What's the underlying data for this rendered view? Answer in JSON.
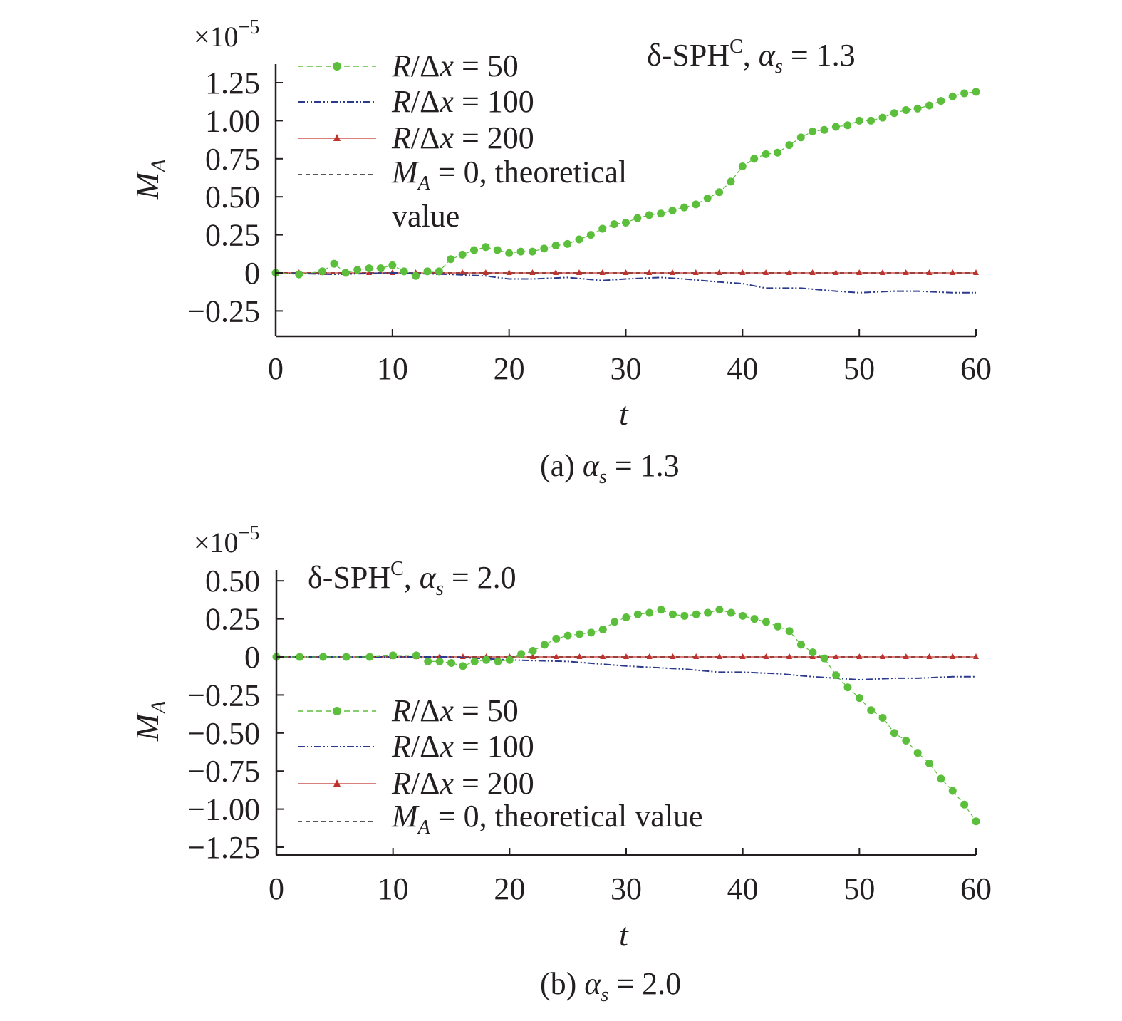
{
  "chart_data": [
    {
      "type": "line",
      "caption": {
        "prefix": "(a) ",
        "symbol": "α",
        "sub": "s",
        "suffix": " = 1.3"
      },
      "annotation": {
        "delta": "δ-SPH",
        "sup": "C",
        "comma": ", ",
        "symbol": "α",
        "sub": "s",
        "suffix": " = 1.3"
      },
      "multiplier": {
        "base": "×10",
        "exp": "−5"
      },
      "xlabel": "t",
      "ylabel": {
        "main": "M",
        "sub": "A"
      },
      "xlim": [
        0,
        60
      ],
      "ylim": [
        -0.4,
        1.35
      ],
      "xticks": [
        0,
        10,
        20,
        30,
        40,
        50,
        60
      ],
      "xtick_labels": [
        "0",
        "10",
        "20",
        "30",
        "40",
        "50",
        "60"
      ],
      "yticks": [
        -0.25,
        0,
        0.25,
        0.5,
        0.75,
        1.0,
        1.25
      ],
      "ytick_labels": [
        "−0.25",
        "0",
        "0.25",
        "0.50",
        "0.75",
        "1.00",
        "1.25"
      ],
      "legend_position": "top-left",
      "series": [
        {
          "name": "R/Δx = 50",
          "label": {
            "R": "R",
            "slash": "/Δ",
            "x": "x",
            "rest": " = 50"
          },
          "color": "#5bbf3c",
          "style": "dots",
          "x": [
            0,
            2,
            4,
            5,
            6,
            7,
            8,
            9,
            10,
            11,
            12,
            13,
            14,
            15,
            16,
            17,
            18,
            19,
            20,
            21,
            22,
            23,
            24,
            25,
            26,
            27,
            28,
            29,
            30,
            31,
            32,
            33,
            34,
            35,
            36,
            37,
            38,
            39,
            40,
            41,
            42,
            43,
            44,
            45,
            46,
            47,
            48,
            49,
            50,
            51,
            52,
            53,
            54,
            55,
            56,
            57,
            58,
            59,
            60
          ],
          "y": [
            0,
            -0.01,
            0.01,
            0.06,
            0.0,
            0.02,
            0.03,
            0.03,
            0.05,
            0.01,
            -0.02,
            0.01,
            0.01,
            0.09,
            0.12,
            0.15,
            0.17,
            0.15,
            0.13,
            0.14,
            0.14,
            0.16,
            0.18,
            0.19,
            0.22,
            0.25,
            0.29,
            0.32,
            0.33,
            0.36,
            0.38,
            0.39,
            0.41,
            0.43,
            0.45,
            0.49,
            0.53,
            0.6,
            0.7,
            0.75,
            0.78,
            0.79,
            0.84,
            0.89,
            0.93,
            0.94,
            0.96,
            0.97,
            1.0,
            1.0,
            1.02,
            1.05,
            1.07,
            1.08,
            1.1,
            1.13,
            1.16,
            1.18,
            1.19
          ]
        },
        {
          "name": "R/Δx = 100",
          "label": {
            "R": "R",
            "slash": "/Δ",
            "x": "x",
            "rest": " = 100"
          },
          "color": "#2b3a8c",
          "style": "dashdot",
          "x": [
            0,
            5,
            10,
            15,
            18,
            20,
            22,
            25,
            28,
            30,
            33,
            35,
            38,
            40,
            42,
            45,
            48,
            50,
            53,
            55,
            58,
            60
          ],
          "y": [
            0,
            -0.01,
            0,
            -0.01,
            -0.02,
            -0.04,
            -0.04,
            -0.03,
            -0.05,
            -0.04,
            -0.03,
            -0.04,
            -0.06,
            -0.07,
            -0.1,
            -0.1,
            -0.12,
            -0.13,
            -0.12,
            -0.12,
            -0.13,
            -0.13
          ]
        },
        {
          "name": "R/Δx = 200",
          "label": {
            "R": "R",
            "slash": "/Δ",
            "x": "x",
            "rest": " = 200"
          },
          "color": "#c0322c",
          "style": "triangles",
          "x": [
            0,
            2,
            4,
            6,
            8,
            10,
            12,
            14,
            16,
            18,
            20,
            22,
            24,
            26,
            28,
            30,
            32,
            34,
            36,
            38,
            40,
            42,
            44,
            46,
            48,
            50,
            52,
            54,
            56,
            58,
            60
          ],
          "y": [
            0,
            0,
            0,
            0,
            0,
            0,
            0,
            0,
            0,
            0,
            0,
            0,
            0,
            0,
            0,
            0,
            0,
            0,
            0,
            0,
            0,
            0,
            0,
            0,
            0,
            0,
            0,
            0,
            0,
            0,
            0
          ]
        },
        {
          "name": "M_A = 0, theoretical value",
          "label": {
            "M": "M",
            "sub": "A",
            "line1": " = 0, theoretical",
            "line2": "value"
          },
          "color": "#231f20",
          "style": "dashed",
          "x": [
            0,
            60
          ],
          "y": [
            0,
            0
          ]
        }
      ]
    },
    {
      "type": "line",
      "caption": {
        "prefix": "(b) ",
        "symbol": "α",
        "sub": "s",
        "suffix": " = 2.0"
      },
      "annotation": {
        "delta": "δ-SPH",
        "sup": "C",
        "comma": ", ",
        "symbol": "α",
        "sub": "s",
        "suffix": " = 2.0"
      },
      "multiplier": {
        "base": "×10",
        "exp": "−5"
      },
      "xlabel": "t",
      "ylabel": {
        "main": "M",
        "sub": "A"
      },
      "xlim": [
        0,
        60
      ],
      "ylim": [
        -1.3,
        0.6
      ],
      "xticks": [
        0,
        10,
        20,
        30,
        40,
        50,
        60
      ],
      "xtick_labels": [
        "0",
        "10",
        "20",
        "30",
        "40",
        "50",
        "60"
      ],
      "yticks": [
        -1.25,
        -1.0,
        -0.75,
        -0.5,
        -0.25,
        0,
        0.25,
        0.5
      ],
      "ytick_labels": [
        "−1.25",
        "−1.00",
        "−0.75",
        "−0.50",
        "−0.25",
        "0",
        "0.25",
        "0.50"
      ],
      "legend_position": "bottom-left",
      "series": [
        {
          "name": "R/Δx = 50",
          "label": {
            "R": "R",
            "slash": "/Δ",
            "x": "x",
            "rest": " = 50"
          },
          "color": "#5bbf3c",
          "style": "dots",
          "x": [
            0,
            2,
            4,
            6,
            8,
            10,
            12,
            13,
            14,
            15,
            16,
            17,
            18,
            19,
            20,
            21,
            22,
            23,
            24,
            25,
            26,
            27,
            28,
            29,
            30,
            31,
            32,
            33,
            34,
            35,
            36,
            37,
            38,
            39,
            40,
            41,
            42,
            43,
            44,
            45,
            46,
            47,
            48,
            49,
            50,
            51,
            52,
            53,
            54,
            55,
            56,
            57,
            58,
            59,
            60
          ],
          "y": [
            0,
            0,
            0,
            0,
            0,
            0.01,
            0.01,
            -0.03,
            -0.03,
            -0.04,
            -0.06,
            -0.03,
            -0.02,
            -0.03,
            -0.02,
            0.02,
            0.04,
            0.08,
            0.12,
            0.14,
            0.15,
            0.16,
            0.18,
            0.23,
            0.26,
            0.28,
            0.29,
            0.31,
            0.28,
            0.27,
            0.28,
            0.29,
            0.31,
            0.29,
            0.27,
            0.25,
            0.23,
            0.2,
            0.17,
            0.08,
            0.03,
            -0.01,
            -0.12,
            -0.2,
            -0.27,
            -0.35,
            -0.4,
            -0.5,
            -0.55,
            -0.63,
            -0.7,
            -0.8,
            -0.88,
            -0.97,
            -1.08
          ]
        },
        {
          "name": "R/Δx = 100",
          "label": {
            "R": "R",
            "slash": "/Δ",
            "x": "x",
            "rest": " = 100"
          },
          "color": "#2b3a8c",
          "style": "dashdot",
          "x": [
            0,
            10,
            15,
            20,
            25,
            30,
            35,
            38,
            40,
            43,
            46,
            48,
            50,
            53,
            55,
            58,
            60
          ],
          "y": [
            0,
            0,
            0,
            -0.02,
            -0.03,
            -0.06,
            -0.08,
            -0.1,
            -0.1,
            -0.11,
            -0.13,
            -0.14,
            -0.15,
            -0.14,
            -0.14,
            -0.13,
            -0.13
          ]
        },
        {
          "name": "R/Δx = 200",
          "label": {
            "R": "R",
            "slash": "/Δ",
            "x": "x",
            "rest": " = 200"
          },
          "color": "#c0322c",
          "style": "triangles",
          "x": [
            0,
            2,
            4,
            6,
            8,
            10,
            12,
            14,
            16,
            18,
            20,
            22,
            24,
            26,
            28,
            30,
            32,
            34,
            36,
            38,
            40,
            42,
            44,
            46,
            48,
            50,
            52,
            54,
            56,
            58,
            60
          ],
          "y": [
            0,
            0,
            0,
            0,
            0,
            0,
            0,
            0,
            0,
            0,
            0,
            0,
            0,
            0,
            0,
            0,
            0,
            0,
            0,
            0,
            0,
            0,
            0,
            0,
            0,
            0,
            0,
            0,
            0,
            0,
            0
          ]
        },
        {
          "name": "M_A = 0, theoretical value",
          "label": {
            "M": "M",
            "sub": "A",
            "line1": " = 0, theoretical value",
            "line2": ""
          },
          "color": "#231f20",
          "style": "dashed",
          "x": [
            0,
            60
          ],
          "y": [
            0,
            0
          ]
        }
      ]
    }
  ]
}
